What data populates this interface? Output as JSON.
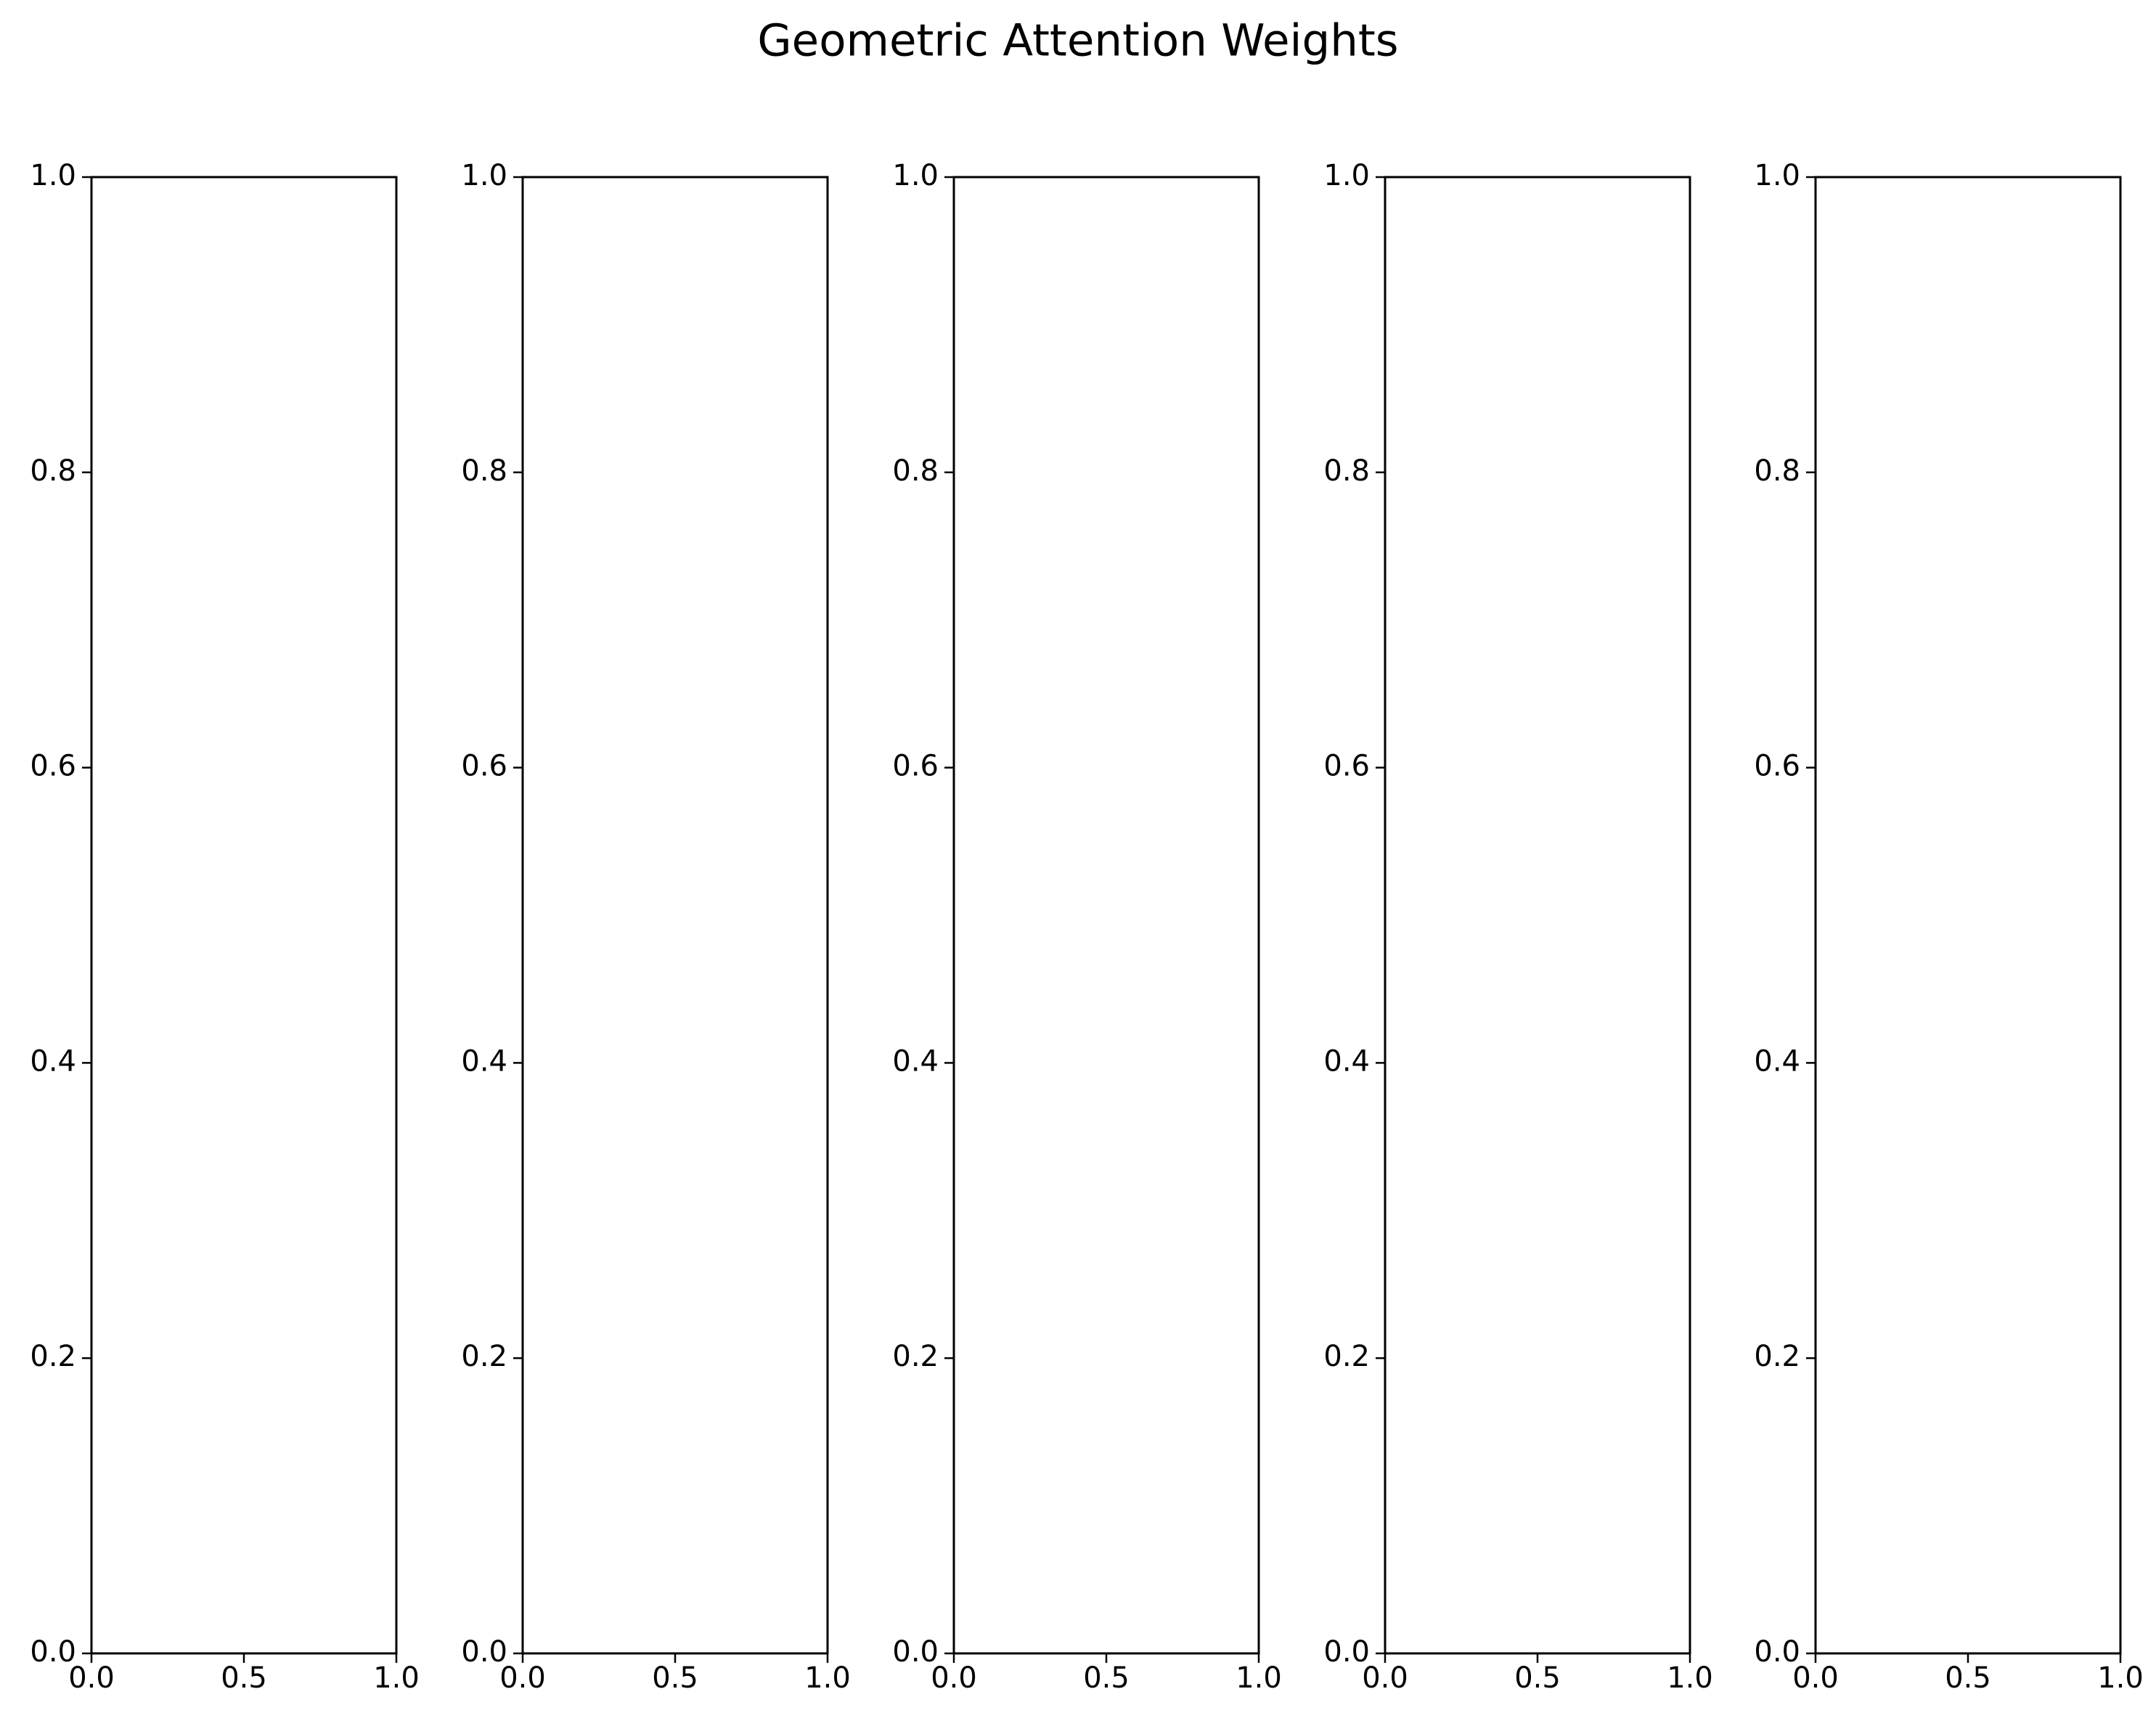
{
  "chart_data": [
    {
      "type": "line",
      "title": "",
      "xlabel": "",
      "ylabel": "",
      "xlim": [
        0,
        1
      ],
      "ylim": [
        0,
        1
      ],
      "x_ticks": [
        "0.0",
        "0.5",
        "1.0"
      ],
      "y_ticks": [
        "0.0",
        "0.2",
        "0.4",
        "0.6",
        "0.8",
        "1.0"
      ],
      "series": [],
      "grid": false
    },
    {
      "type": "line",
      "title": "",
      "xlabel": "",
      "ylabel": "",
      "xlim": [
        0,
        1
      ],
      "ylim": [
        0,
        1
      ],
      "x_ticks": [
        "0.0",
        "0.5",
        "1.0"
      ],
      "y_ticks": [
        "0.0",
        "0.2",
        "0.4",
        "0.6",
        "0.8",
        "1.0"
      ],
      "series": [],
      "grid": false
    },
    {
      "type": "line",
      "title": "",
      "xlabel": "",
      "ylabel": "",
      "xlim": [
        0,
        1
      ],
      "ylim": [
        0,
        1
      ],
      "x_ticks": [
        "0.0",
        "0.5",
        "1.0"
      ],
      "y_ticks": [
        "0.0",
        "0.2",
        "0.4",
        "0.6",
        "0.8",
        "1.0"
      ],
      "series": [],
      "grid": false
    },
    {
      "type": "line",
      "title": "",
      "xlabel": "",
      "ylabel": "",
      "xlim": [
        0,
        1
      ],
      "ylim": [
        0,
        1
      ],
      "x_ticks": [
        "0.0",
        "0.5",
        "1.0"
      ],
      "y_ticks": [
        "0.0",
        "0.2",
        "0.4",
        "0.6",
        "0.8",
        "1.0"
      ],
      "series": [],
      "grid": false
    },
    {
      "type": "line",
      "title": "",
      "xlabel": "",
      "ylabel": "",
      "xlim": [
        0,
        1
      ],
      "ylim": [
        0,
        1
      ],
      "x_ticks": [
        "0.0",
        "0.5",
        "1.0"
      ],
      "y_ticks": [
        "0.0",
        "0.2",
        "0.4",
        "0.6",
        "0.8",
        "1.0"
      ],
      "series": [],
      "grid": false
    }
  ],
  "figure": {
    "suptitle": "Geometric Attention Weights",
    "background_color": "#ffffff",
    "axes_color": "#000000"
  }
}
